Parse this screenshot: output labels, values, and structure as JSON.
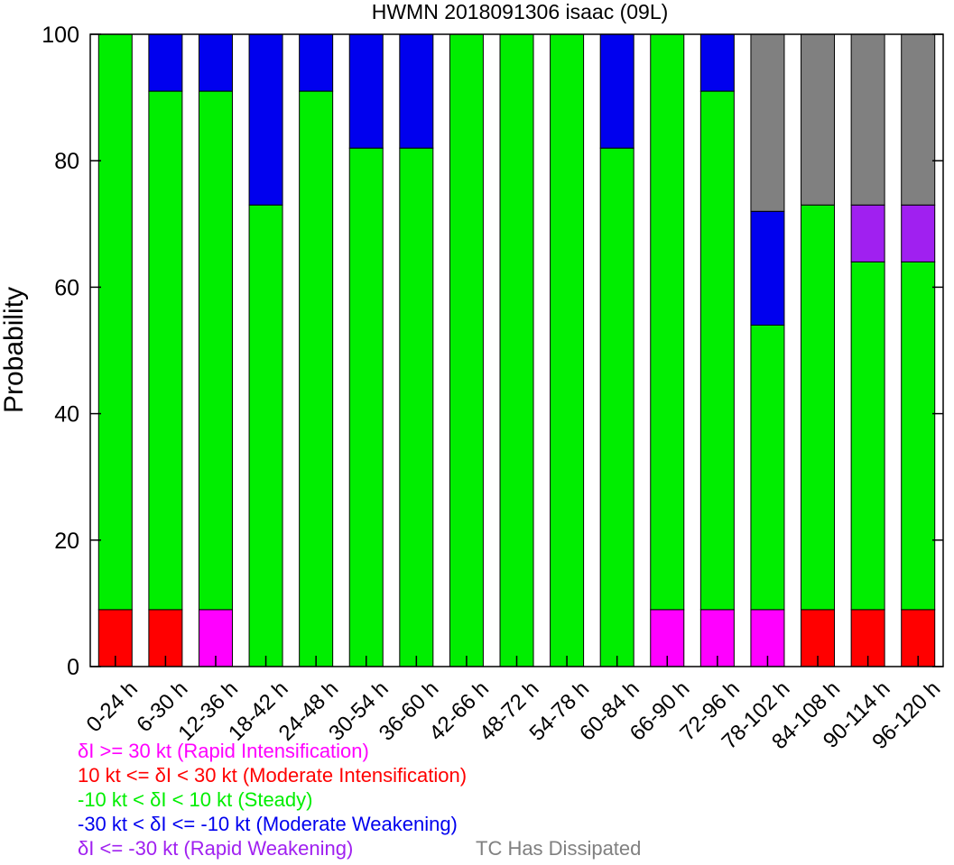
{
  "chart_data": {
    "type": "bar",
    "stacked": true,
    "title": "HWMN 2018091306 isaac (09L)",
    "xlabel": "",
    "ylabel": "Probability",
    "ylim": [
      0,
      100
    ],
    "yticks": [
      0,
      20,
      40,
      60,
      80,
      100
    ],
    "categories": [
      "0-24 h",
      "6-30 h",
      "12-36 h",
      "18-42 h",
      "24-48 h",
      "30-54 h",
      "36-60 h",
      "42-66 h",
      "48-72 h",
      "54-78 h",
      "60-84 h",
      "66-90 h",
      "72-96 h",
      "78-102 h",
      "84-108 h",
      "90-114 h",
      "96-120 h"
    ],
    "series": [
      {
        "name": "Rapid Intensification",
        "color": "#ff00ff",
        "values": [
          0,
          0,
          9,
          0,
          0,
          0,
          0,
          0,
          0,
          0,
          0,
          9,
          9,
          9,
          0,
          0,
          0
        ]
      },
      {
        "name": "Moderate Intensification",
        "color": "#ff0000",
        "values": [
          9,
          9,
          0,
          0,
          0,
          0,
          0,
          0,
          0,
          0,
          0,
          0,
          0,
          0,
          9,
          9,
          9
        ]
      },
      {
        "name": "Steady",
        "color": "#00ee00",
        "values": [
          91,
          82,
          82,
          73,
          91,
          82,
          82,
          100,
          100,
          100,
          82,
          91,
          82,
          45,
          64,
          55,
          55
        ]
      },
      {
        "name": "Moderate Weakening",
        "color": "#0000ee",
        "values": [
          0,
          9,
          9,
          27,
          9,
          18,
          18,
          0,
          0,
          0,
          18,
          0,
          9,
          18,
          0,
          0,
          0
        ]
      },
      {
        "name": "Rapid Weakening",
        "color": "#a020f0",
        "values": [
          0,
          0,
          0,
          0,
          0,
          0,
          0,
          0,
          0,
          0,
          0,
          0,
          0,
          0,
          0,
          9,
          9
        ]
      },
      {
        "name": "TC Has Dissipated",
        "color": "#808080",
        "values": [
          0,
          0,
          0,
          0,
          0,
          0,
          0,
          0,
          0,
          0,
          0,
          0,
          0,
          28,
          27,
          27,
          27
        ]
      }
    ]
  },
  "legend": [
    {
      "text": "δI >= 30 kt (Rapid Intensification)",
      "color": "#ff00ff"
    },
    {
      "text": "10 kt <= δI < 30 kt (Moderate Intensification)",
      "color": "#ff0000"
    },
    {
      "text": "-10 kt < δI < 10 kt (Steady)",
      "color": "#00ee00"
    },
    {
      "text": "-30 kt < δI <= -10 kt (Moderate Weakening)",
      "color": "#0000ee"
    },
    {
      "text": "δI <= -30 kt (Rapid Weakening)",
      "color": "#a020f0"
    },
    {
      "text": "TC Has Dissipated",
      "color": "#808080"
    }
  ]
}
